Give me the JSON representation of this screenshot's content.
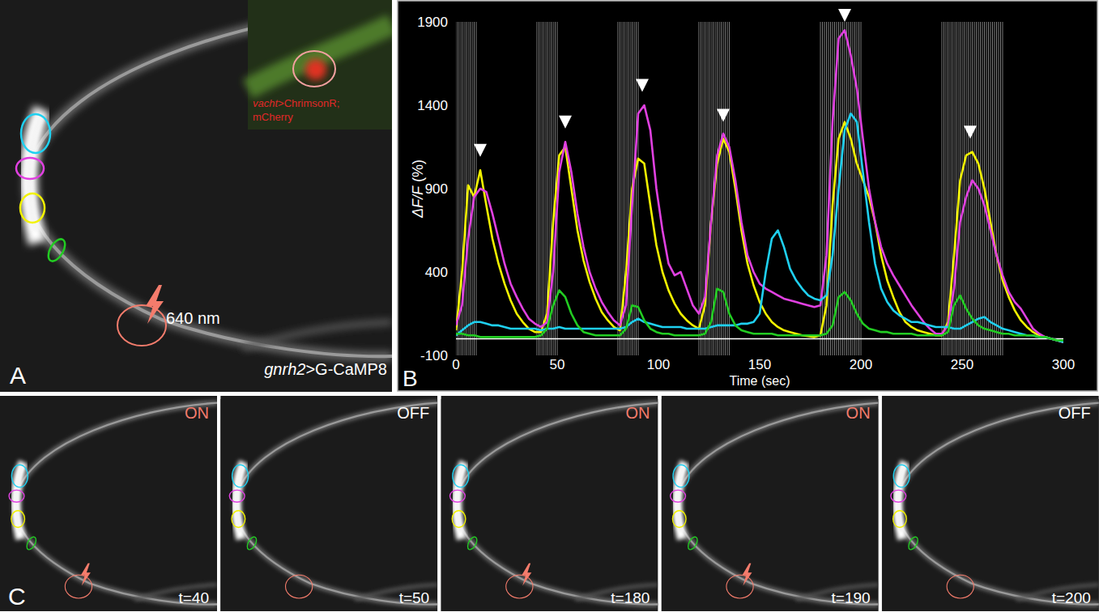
{
  "chart_data": {
    "type": "line",
    "letter": "B",
    "xlabel": "Time (sec)",
    "ylabel": "ΔF/F (%)",
    "x": [
      0,
      3,
      6,
      9,
      12,
      15,
      18,
      21,
      24,
      27,
      30,
      33,
      36,
      39,
      42,
      45,
      48,
      51,
      54,
      57,
      60,
      63,
      66,
      69,
      72,
      75,
      78,
      81,
      84,
      87,
      90,
      93,
      96,
      99,
      102,
      105,
      108,
      111,
      114,
      117,
      120,
      123,
      126,
      129,
      132,
      135,
      138,
      141,
      144,
      147,
      150,
      153,
      156,
      159,
      162,
      165,
      168,
      171,
      174,
      177,
      180,
      183,
      186,
      189,
      192,
      195,
      198,
      201,
      204,
      207,
      210,
      213,
      216,
      219,
      222,
      225,
      228,
      231,
      234,
      237,
      240,
      243,
      246,
      249,
      252,
      255,
      258,
      261,
      264,
      267,
      270,
      273,
      276,
      279,
      282,
      285,
      288,
      291,
      294,
      297,
      300
    ],
    "series": [
      {
        "color": "#f2f200",
        "values": [
          50,
          400,
          920,
          850,
          1010,
          800,
          600,
          450,
          330,
          230,
          150,
          100,
          60,
          40,
          40,
          150,
          700,
          1100,
          1150,
          900,
          650,
          470,
          340,
          240,
          160,
          110,
          70,
          50,
          400,
          900,
          1080,
          1050,
          800,
          560,
          400,
          290,
          210,
          150,
          110,
          80,
          60,
          200,
          700,
          1050,
          1200,
          1120,
          900,
          650,
          450,
          320,
          220,
          150,
          100,
          70,
          50,
          40,
          30,
          20,
          15,
          10,
          20,
          200,
          800,
          1200,
          1300,
          1200,
          1050,
          950,
          850,
          700,
          500,
          350,
          250,
          160,
          100,
          70,
          50,
          40,
          30,
          20,
          20,
          100,
          500,
          950,
          1100,
          1120,
          1050,
          900,
          700,
          500,
          350,
          250,
          170,
          110,
          70,
          40,
          20,
          10,
          0,
          -10,
          -20
        ]
      },
      {
        "color": "#e040e0",
        "values": [
          80,
          200,
          600,
          850,
          900,
          880,
          750,
          600,
          450,
          330,
          250,
          180,
          120,
          90,
          70,
          100,
          400,
          1000,
          1180,
          1000,
          750,
          550,
          400,
          300,
          220,
          160,
          110,
          80,
          200,
          800,
          1350,
          1400,
          1250,
          900,
          650,
          450,
          380,
          400,
          300,
          200,
          150,
          250,
          700,
          1100,
          1230,
          1150,
          950,
          700,
          500,
          400,
          330,
          300,
          280,
          260,
          240,
          230,
          220,
          210,
          200,
          190,
          200,
          500,
          1300,
          1800,
          1850,
          1700,
          1500,
          1200,
          900,
          700,
          550,
          450,
          380,
          320,
          260,
          200,
          150,
          100,
          60,
          30,
          30,
          80,
          300,
          700,
          850,
          950,
          900,
          800,
          650,
          500,
          380,
          280,
          220,
          180,
          120,
          60,
          30,
          10,
          0,
          -10,
          -20
        ]
      },
      {
        "color": "#1fd0f0",
        "values": [
          20,
          50,
          80,
          100,
          100,
          90,
          80,
          80,
          70,
          60,
          60,
          60,
          60,
          60,
          50,
          60,
          60,
          70,
          60,
          60,
          60,
          60,
          60,
          60,
          60,
          60,
          60,
          60,
          70,
          100,
          120,
          100,
          90,
          80,
          70,
          70,
          70,
          70,
          60,
          60,
          60,
          60,
          70,
          80,
          80,
          80,
          80,
          90,
          90,
          100,
          150,
          400,
          600,
          650,
          550,
          420,
          350,
          300,
          260,
          240,
          230,
          260,
          500,
          900,
          1250,
          1350,
          1300,
          1000,
          700,
          450,
          300,
          220,
          170,
          140,
          120,
          100,
          100,
          90,
          80,
          70,
          70,
          70,
          60,
          60,
          80,
          100,
          120,
          130,
          100,
          80,
          60,
          50,
          40,
          30,
          20,
          20,
          10,
          10,
          0,
          -10,
          -20
        ]
      },
      {
        "color": "#22cc22",
        "values": [
          30,
          30,
          20,
          20,
          10,
          10,
          10,
          10,
          10,
          10,
          10,
          10,
          10,
          10,
          20,
          60,
          200,
          290,
          250,
          150,
          80,
          40,
          30,
          20,
          20,
          20,
          20,
          20,
          60,
          200,
          190,
          110,
          60,
          40,
          30,
          30,
          20,
          20,
          20,
          20,
          20,
          30,
          100,
          300,
          280,
          150,
          80,
          50,
          40,
          30,
          30,
          30,
          30,
          20,
          20,
          20,
          20,
          20,
          20,
          20,
          20,
          30,
          80,
          250,
          280,
          230,
          150,
          90,
          60,
          50,
          40,
          40,
          30,
          30,
          30,
          30,
          20,
          20,
          20,
          20,
          20,
          40,
          200,
          260,
          180,
          120,
          80,
          60,
          50,
          40,
          30,
          30,
          20,
          20,
          20,
          20,
          10,
          10,
          0,
          -10,
          -10
        ]
      }
    ],
    "xlim": [
      0,
      300
    ],
    "xticks": [
      0,
      50,
      100,
      150,
      200,
      250,
      300
    ],
    "ylim": [
      -100,
      1900
    ],
    "yticks": [
      -100,
      400,
      900,
      1400,
      1900
    ],
    "baseline": 0,
    "stimulation": [
      [
        0,
        10
      ],
      [
        40,
        50
      ],
      [
        80,
        90
      ],
      [
        120,
        135
      ],
      [
        180,
        200
      ],
      [
        240,
        270
      ]
    ],
    "arrowheads": {
      "x": [
        12,
        54,
        92,
        132,
        192,
        254
      ],
      "y": [
        1090,
        1260,
        1480,
        1300,
        1900,
        1200
      ]
    },
    "grid": false
  },
  "panel_a": {
    "letter": "A",
    "label": "gnrh2>G-CaMP8",
    "laser_label": "640 nm",
    "inset_label": [
      "vacht>ChrimsonR;",
      "mCherry"
    ]
  },
  "panel_c": {
    "letter": "C",
    "frames": [
      {
        "state": "ON",
        "time": "t=40",
        "laser": true
      },
      {
        "state": "OFF",
        "time": "t=50",
        "laser": false
      },
      {
        "state": "ON",
        "time": "t=180",
        "laser": true
      },
      {
        "state": "ON",
        "time": "t=190",
        "laser": true
      },
      {
        "state": "OFF",
        "time": "t=200",
        "laser": false
      }
    ]
  }
}
